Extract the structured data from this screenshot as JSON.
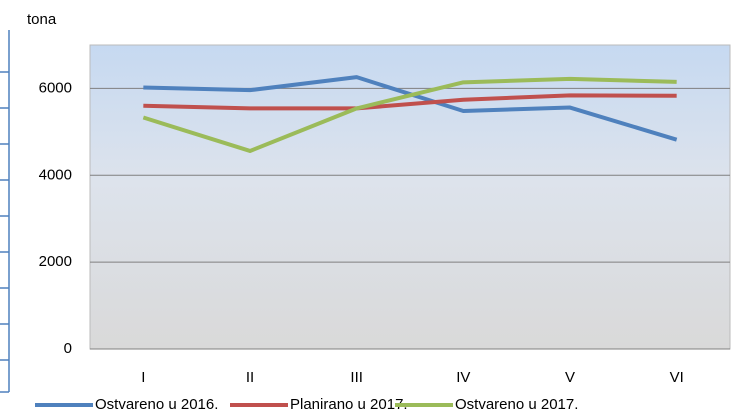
{
  "chart_data": {
    "type": "line",
    "y_label": "tona",
    "categories": [
      "I",
      "II",
      "III",
      "IV",
      "V",
      "VI"
    ],
    "series": [
      {
        "name": "Ostvareno u 2016.",
        "color": "#4f81bd",
        "values": [
          6020,
          5960,
          6260,
          5480,
          5560,
          4820
        ]
      },
      {
        "name": "Planirano u 2017.",
        "color": "#c0504d",
        "values": [
          5600,
          5540,
          5540,
          5740,
          5840,
          5830
        ]
      },
      {
        "name": "Ostvareno u 2017.",
        "color": "#9bbb59",
        "values": [
          5330,
          4560,
          5540,
          6140,
          6220,
          6150
        ]
      }
    ],
    "ylim": [
      0,
      7000
    ],
    "yticks": [
      0,
      2000,
      4000,
      6000
    ],
    "grid": true,
    "legend": "bottom"
  }
}
